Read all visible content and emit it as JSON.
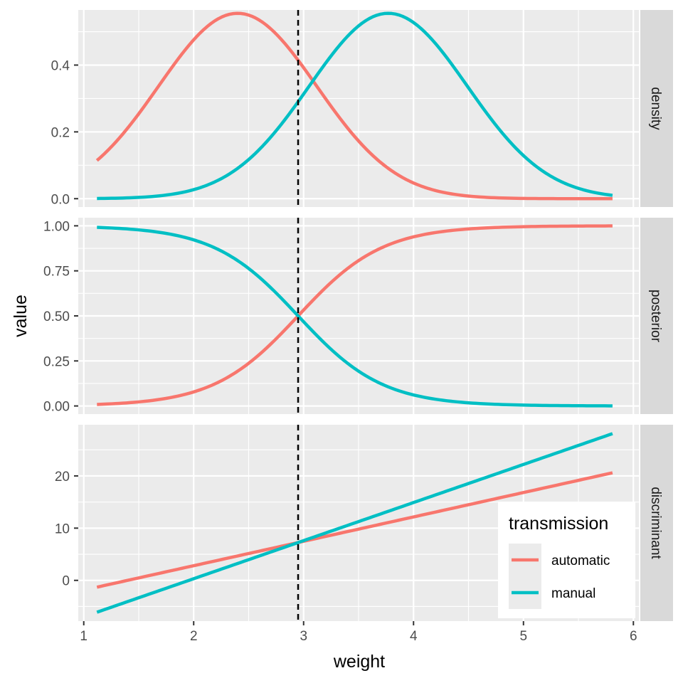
{
  "chart_data": {
    "type": "line",
    "xlabel": "weight",
    "ylabel": "value",
    "xlim": [
      0.95,
      6.05
    ],
    "x_ticks": [
      1,
      2,
      3,
      4,
      5,
      6
    ],
    "x_tick_labels": [
      "1",
      "2",
      "3",
      "4",
      "5",
      "6"
    ],
    "threshold_x": 2.95,
    "threshold_style": "dashed",
    "grid": true,
    "facet_layout": "rows",
    "legend": {
      "title": "transmission",
      "position": "bottom-right",
      "entries": [
        {
          "label": "automatic",
          "color": "#F8766D"
        },
        {
          "label": "manual",
          "color": "#00BFC4"
        }
      ]
    },
    "panels": [
      {
        "strip": "density",
        "ylim": [
          -0.025,
          0.565
        ],
        "y_ticks": [
          0,
          0.2,
          0.4
        ],
        "y_tick_labels": [
          "0.0",
          "0.2",
          "0.4"
        ],
        "curve": "gaussian",
        "series": [
          {
            "name": "automatic",
            "mean": 2.4,
            "sd": 0.72,
            "peak": 0.555
          },
          {
            "name": "manual",
            "mean": 3.77,
            "sd": 0.72,
            "peak": 0.555
          }
        ]
      },
      {
        "strip": "posterior",
        "ylim": [
          -0.045,
          1.045
        ],
        "y_ticks": [
          0,
          0.25,
          0.5,
          0.75,
          1
        ],
        "y_tick_labels": [
          "0.00",
          "0.25",
          "0.50",
          "0.75",
          "1.00"
        ],
        "curve": "logistic",
        "series": [
          {
            "name": "automatic",
            "midpoint": 2.95,
            "slope": 2.6,
            "direction": 1
          },
          {
            "name": "manual",
            "midpoint": 2.95,
            "slope": 2.6,
            "direction": -1
          }
        ]
      },
      {
        "strip": "discriminant",
        "ylim": [
          -7.8,
          29.8
        ],
        "y_ticks": [
          0,
          10,
          20
        ],
        "y_tick_labels": [
          "0",
          "10",
          "20"
        ],
        "curve": "linear",
        "series": [
          {
            "name": "automatic",
            "points": [
              [
                1.12,
                -1.3
              ],
              [
                5.81,
                20.6
              ]
            ]
          },
          {
            "name": "manual",
            "points": [
              [
                1.12,
                -6.1
              ],
              [
                5.81,
                28.1
              ]
            ]
          }
        ]
      }
    ],
    "x_range": [
      1.12,
      5.81
    ]
  }
}
